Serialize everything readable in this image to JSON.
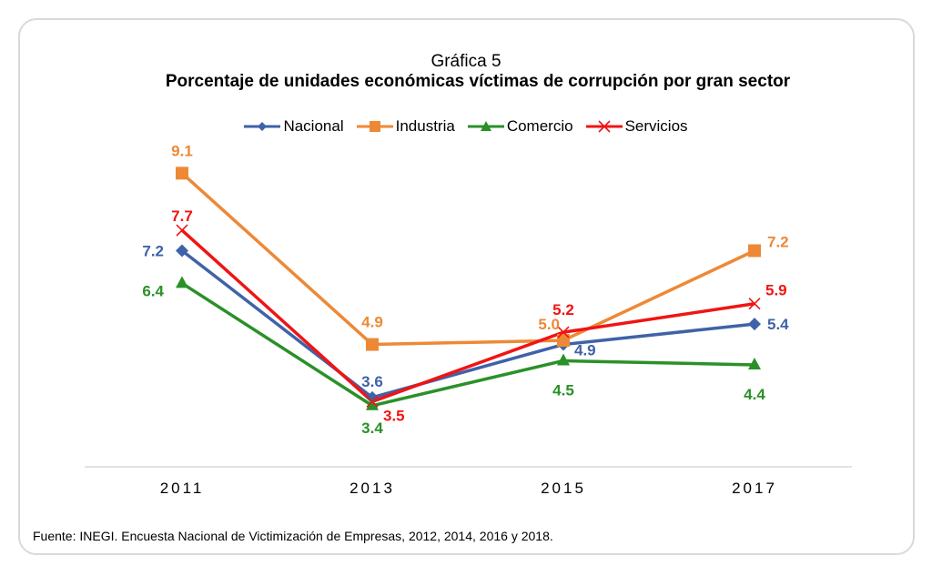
{
  "chart_data": {
    "type": "line",
    "title_line1": "Gráfica 5",
    "title": "Porcentaje de unidades económicas víctimas de corrupción por gran sector",
    "xlabel": "",
    "ylabel": "",
    "categories": [
      "2011",
      "2013",
      "2015",
      "2017"
    ],
    "ylim": [
      1.9,
      10
    ],
    "grid": false,
    "legend_position": "top",
    "series": [
      {
        "name": "Nacional",
        "color": "#3f62a8",
        "marker": "diamond",
        "values": [
          7.2,
          3.6,
          4.9,
          5.4
        ],
        "labels": [
          "7.2",
          "3.6",
          "4.9",
          "5.4"
        ]
      },
      {
        "name": "Industria",
        "color": "#ed8936",
        "marker": "square",
        "values": [
          9.1,
          4.9,
          5.0,
          7.2
        ],
        "labels": [
          "9.1",
          "4.9",
          "5.0",
          "7.2"
        ]
      },
      {
        "name": "Comercio",
        "color": "#2a9128",
        "marker": "triangle",
        "values": [
          6.4,
          3.4,
          4.5,
          4.4
        ],
        "labels": [
          "6.4",
          "3.4",
          "4.5",
          "4.4"
        ]
      },
      {
        "name": "Servicios",
        "color": "#f01414",
        "marker": "x",
        "values": [
          7.7,
          3.5,
          5.2,
          5.9
        ],
        "labels": [
          "7.7",
          "3.5",
          "5.2",
          "5.9"
        ]
      }
    ]
  },
  "source_note": "Fuente: INEGI. Encuesta Nacional de Victimización de Empresas, 2012, 2014, 2016 y 2018."
}
